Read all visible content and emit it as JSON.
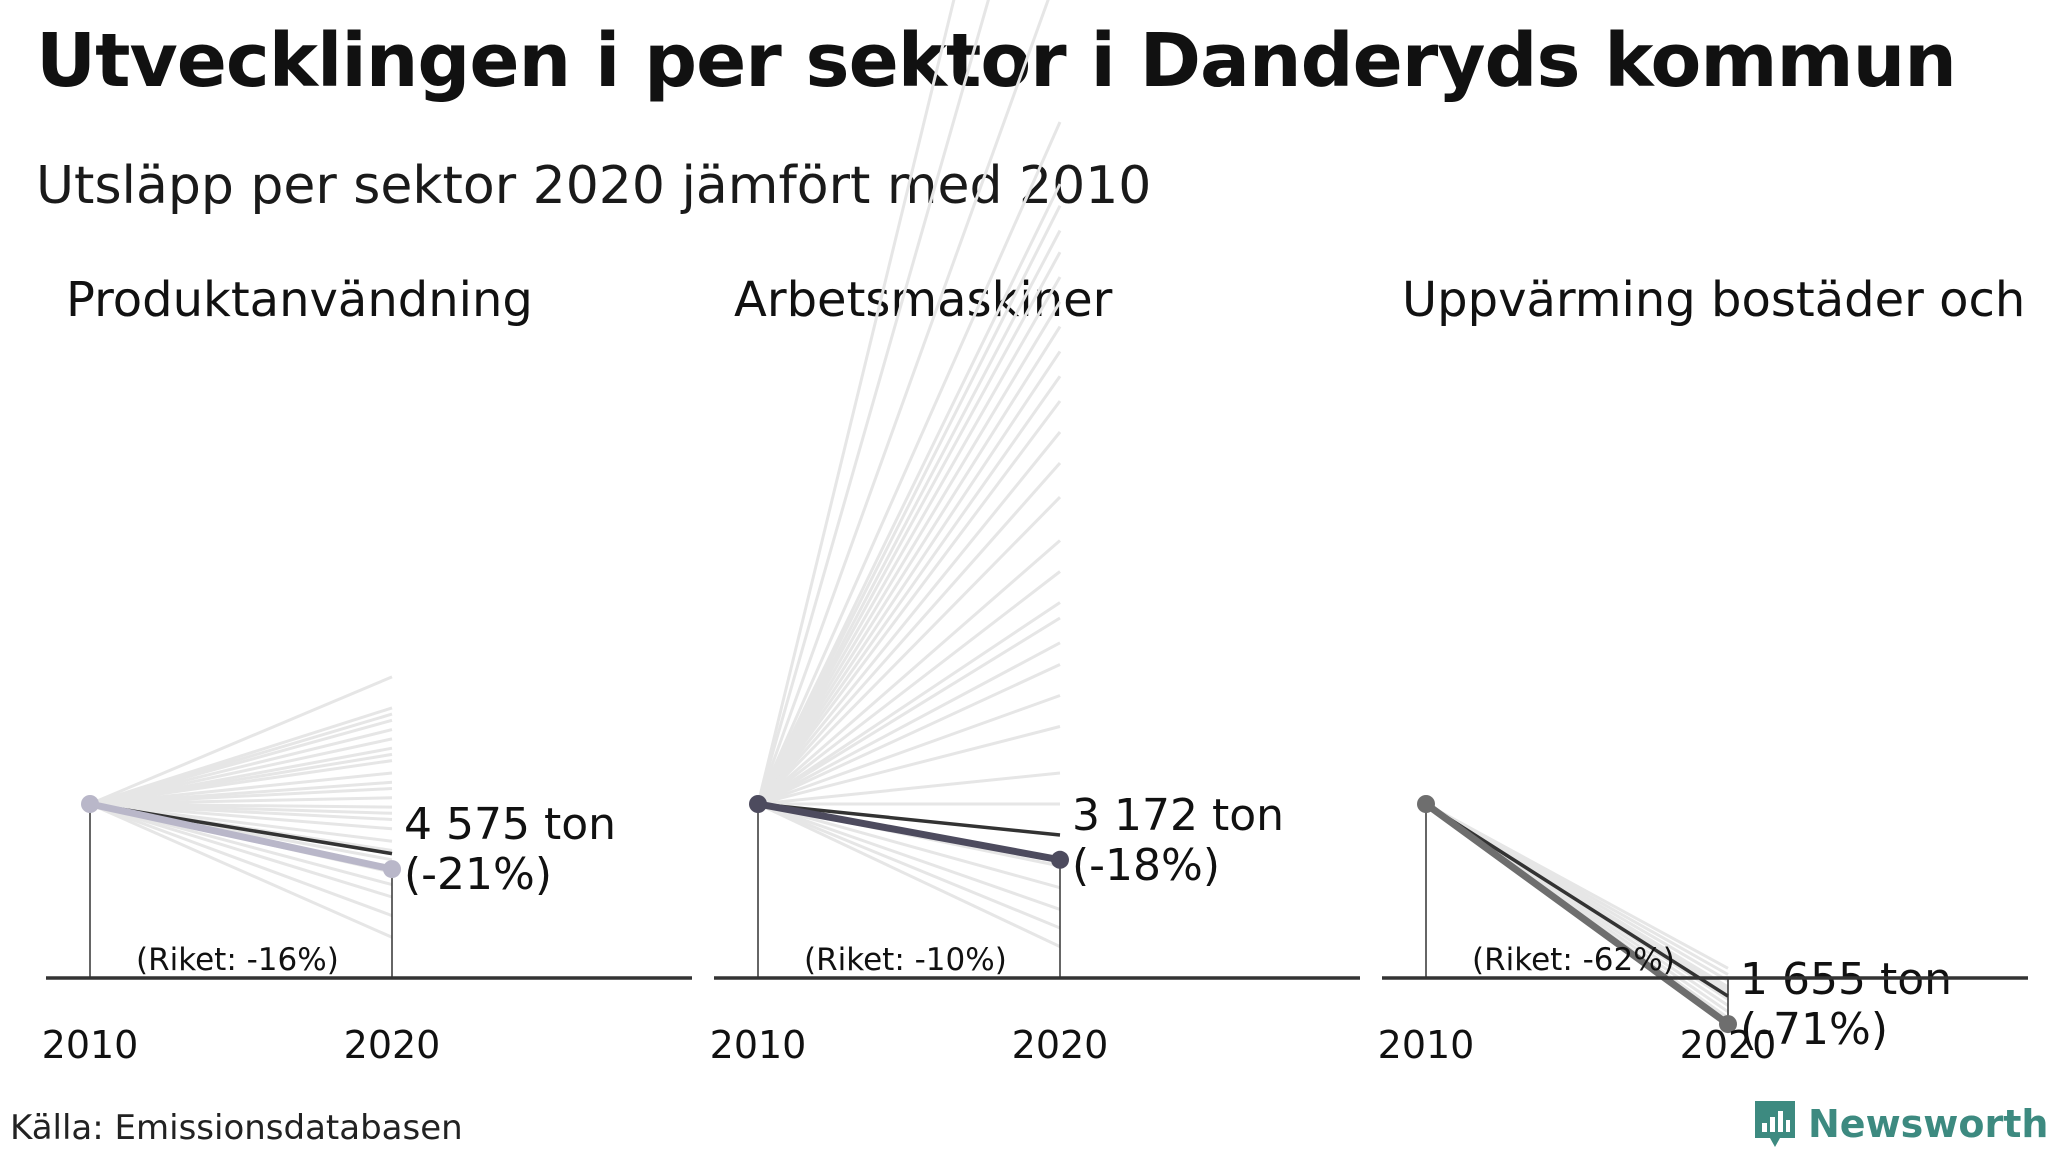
{
  "title": "Utvecklingen i per sektor i Danderyds kommun",
  "subtitle": "Utsläpp per sektor 2020 jämfört med 2010",
  "source": "Källa: Emissionsdatabasen",
  "brand": "Newsworthy",
  "colors": {
    "background_lines": "#e6e6e6",
    "axis": "#333333",
    "brand": "#3d8a80"
  },
  "chart_data": [
    {
      "type": "line",
      "title": "Produktanvändning",
      "x": [
        "2010",
        "2020"
      ],
      "index_2010": 100,
      "comparison_lines_index_2020": [
        141,
        131,
        129,
        127,
        124,
        121,
        118,
        116,
        114,
        110,
        107,
        105,
        102,
        99,
        97,
        95,
        92,
        88,
        85,
        82,
        78,
        74,
        70,
        64,
        57
      ],
      "national_index_2020": 84,
      "municipality_index_2020": 79,
      "value_label": "4 575 ton",
      "change_label": "(-21%)",
      "riket_label": "(Riket: -16%)",
      "highlight_color": "#b9b7c9",
      "national_color": "#333333"
    },
    {
      "type": "line",
      "title": "Arbetsmaskiner",
      "x": [
        "2010",
        "2020"
      ],
      "index_2010": 100,
      "comparison_lines_index_2020": [
        500,
        440,
        370,
        320,
        300,
        293,
        285,
        278,
        270,
        262,
        254,
        246,
        238,
        230,
        220,
        210,
        199,
        185,
        175,
        165,
        160,
        152,
        145,
        135,
        125,
        110,
        100,
        90,
        80,
        73,
        66,
        60,
        54
      ],
      "national_index_2020": 90,
      "municipality_index_2020": 82,
      "value_label": "3 172 ton",
      "change_label": "(-18%)",
      "riket_label": "(Riket: -10%)",
      "highlight_color": "#4d4b5e",
      "national_color": "#333333"
    },
    {
      "type": "line",
      "title": "Uppvärming bostäder och",
      "x": [
        "2010",
        "2020"
      ],
      "index_2010": 100,
      "comparison_lines_index_2020": [
        47,
        45,
        43,
        41,
        40,
        39,
        37,
        35,
        33,
        31,
        30
      ],
      "national_index_2020": 38,
      "municipality_index_2020": 29,
      "value_label": "1 655 ton",
      "change_label": "(-71%)",
      "riket_label": "(Riket: -62%)",
      "highlight_color": "#6e6e6e",
      "national_color": "#333333"
    }
  ]
}
